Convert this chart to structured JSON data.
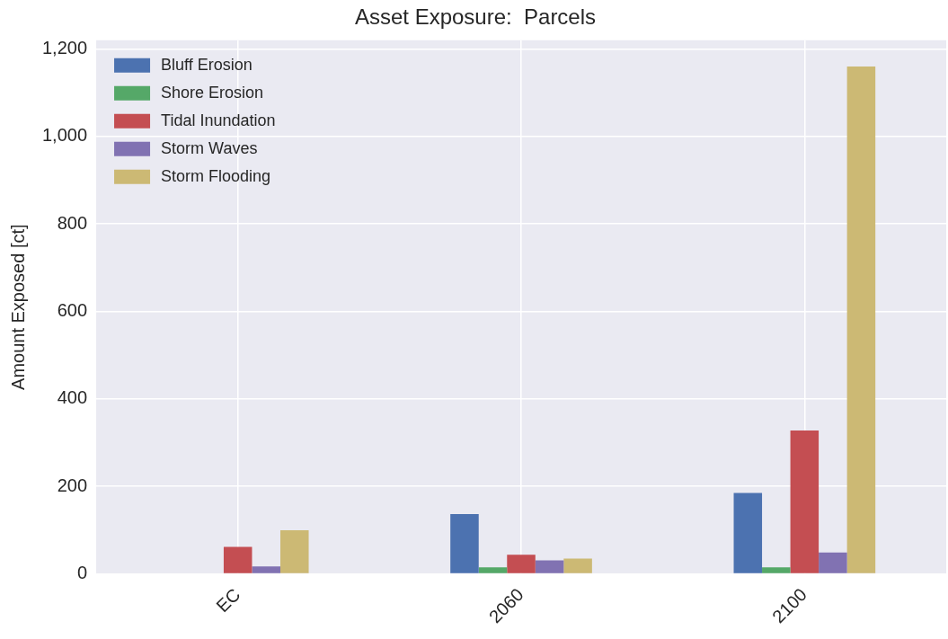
{
  "chart_data": {
    "type": "bar",
    "title": "Asset Exposure:  Parcels",
    "ylabel": "Amount Exposed [ct]",
    "categories": [
      "EC",
      "2060",
      "2100"
    ],
    "series": [
      {
        "name": "Bluff Erosion",
        "color": "#4c72b0",
        "values": [
          0,
          137,
          185
        ]
      },
      {
        "name": "Shore Erosion",
        "color": "#55a868",
        "values": [
          0,
          15,
          15
        ]
      },
      {
        "name": "Tidal Inundation",
        "color": "#c44e52",
        "values": [
          62,
          44,
          328
        ]
      },
      {
        "name": "Storm Waves",
        "color": "#8172b2",
        "values": [
          17,
          31,
          49
        ]
      },
      {
        "name": "Storm Flooding",
        "color": "#ccb974",
        "values": [
          100,
          35,
          1160
        ]
      }
    ],
    "ylim": [
      0,
      1220
    ],
    "yticks": [
      0,
      {
        "value": 200,
        "label": "200"
      },
      {
        "value": 400,
        "label": "400"
      },
      {
        "value": 600,
        "label": "600"
      },
      {
        "value": 800,
        "label": "800"
      },
      {
        "value": 1000,
        "label": "1,000"
      },
      {
        "value": 1200,
        "label": "1,200"
      }
    ],
    "grid": true,
    "legend": "top left"
  }
}
